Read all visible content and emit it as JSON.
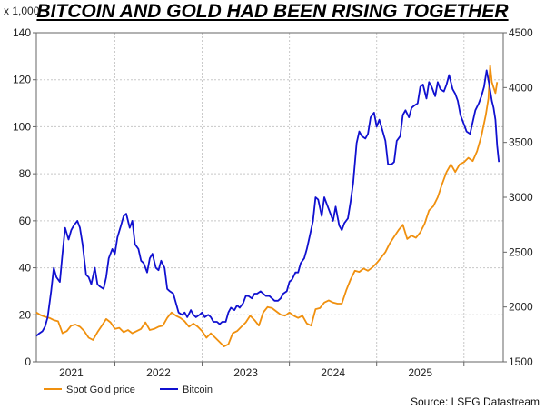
{
  "chart_data": {
    "type": "line",
    "title": "BITCOIN AND GOLD HAD BEEN RISING TOGETHER",
    "y_left_label": "x 1,000",
    "source": "Source: LSEG Datastream",
    "y_left": {
      "min": 0,
      "max": 140,
      "ticks": [
        "0",
        "20",
        "40",
        "60",
        "80",
        "100",
        "120",
        "140"
      ]
    },
    "y_right": {
      "min": 1500,
      "max": 4500,
      "ticks": [
        "1500",
        "2000",
        "2500",
        "3000",
        "3500",
        "4000",
        "4500"
      ]
    },
    "x_axis": {
      "min": 2020.6,
      "max": 2025.95,
      "year_labels": [
        "2021",
        "2022",
        "2023",
        "2024",
        "2025"
      ],
      "year_label_positions": [
        2021.0,
        2022.0,
        2023.0,
        2024.0,
        2025.0
      ],
      "gridlines": [
        2020.5,
        2021.5,
        2022.5,
        2023.5,
        2024.5,
        2025.5
      ]
    },
    "grid": true,
    "legend_position": "bottom-left",
    "series": [
      {
        "name": "Spot Gold price",
        "axis": "right",
        "color": "#f0900e",
        "points": [
          [
            2020.6,
            1950
          ],
          [
            2020.65,
            1925
          ],
          [
            2020.7,
            1910
          ],
          [
            2020.75,
            1900
          ],
          [
            2020.8,
            1880
          ],
          [
            2020.85,
            1870
          ],
          [
            2020.9,
            1760
          ],
          [
            2020.95,
            1780
          ],
          [
            2021.0,
            1830
          ],
          [
            2021.05,
            1840
          ],
          [
            2021.1,
            1820
          ],
          [
            2021.15,
            1780
          ],
          [
            2021.2,
            1720
          ],
          [
            2021.25,
            1700
          ],
          [
            2021.3,
            1770
          ],
          [
            2021.35,
            1830
          ],
          [
            2021.4,
            1890
          ],
          [
            2021.45,
            1860
          ],
          [
            2021.5,
            1800
          ],
          [
            2021.55,
            1810
          ],
          [
            2021.6,
            1770
          ],
          [
            2021.65,
            1790
          ],
          [
            2021.7,
            1760
          ],
          [
            2021.75,
            1780
          ],
          [
            2021.8,
            1800
          ],
          [
            2021.85,
            1860
          ],
          [
            2021.9,
            1790
          ],
          [
            2021.95,
            1800
          ],
          [
            2022.0,
            1820
          ],
          [
            2022.05,
            1830
          ],
          [
            2022.1,
            1900
          ],
          [
            2022.15,
            1950
          ],
          [
            2022.2,
            1920
          ],
          [
            2022.25,
            1900
          ],
          [
            2022.3,
            1870
          ],
          [
            2022.35,
            1820
          ],
          [
            2022.4,
            1850
          ],
          [
            2022.45,
            1820
          ],
          [
            2022.5,
            1780
          ],
          [
            2022.55,
            1720
          ],
          [
            2022.6,
            1760
          ],
          [
            2022.65,
            1720
          ],
          [
            2022.7,
            1680
          ],
          [
            2022.75,
            1640
          ],
          [
            2022.8,
            1660
          ],
          [
            2022.85,
            1760
          ],
          [
            2022.9,
            1780
          ],
          [
            2022.95,
            1820
          ],
          [
            2023.0,
            1860
          ],
          [
            2023.05,
            1920
          ],
          [
            2023.1,
            1880
          ],
          [
            2023.15,
            1830
          ],
          [
            2023.2,
            1950
          ],
          [
            2023.25,
            2000
          ],
          [
            2023.3,
            1990
          ],
          [
            2023.35,
            1960
          ],
          [
            2023.4,
            1930
          ],
          [
            2023.45,
            1920
          ],
          [
            2023.5,
            1950
          ],
          [
            2023.55,
            1920
          ],
          [
            2023.6,
            1900
          ],
          [
            2023.65,
            1920
          ],
          [
            2023.7,
            1850
          ],
          [
            2023.75,
            1830
          ],
          [
            2023.8,
            1980
          ],
          [
            2023.85,
            1990
          ],
          [
            2023.9,
            2040
          ],
          [
            2023.95,
            2060
          ],
          [
            2024.0,
            2040
          ],
          [
            2024.05,
            2030
          ],
          [
            2024.1,
            2030
          ],
          [
            2024.15,
            2150
          ],
          [
            2024.2,
            2250
          ],
          [
            2024.25,
            2330
          ],
          [
            2024.3,
            2320
          ],
          [
            2024.35,
            2350
          ],
          [
            2024.4,
            2330
          ],
          [
            2024.45,
            2360
          ],
          [
            2024.5,
            2400
          ],
          [
            2024.55,
            2450
          ],
          [
            2024.6,
            2500
          ],
          [
            2024.65,
            2580
          ],
          [
            2024.7,
            2640
          ],
          [
            2024.75,
            2700
          ],
          [
            2024.8,
            2750
          ],
          [
            2024.85,
            2620
          ],
          [
            2024.9,
            2650
          ],
          [
            2024.95,
            2630
          ],
          [
            2025.0,
            2680
          ],
          [
            2025.05,
            2760
          ],
          [
            2025.1,
            2880
          ],
          [
            2025.15,
            2920
          ],
          [
            2025.2,
            3000
          ],
          [
            2025.25,
            3120
          ],
          [
            2025.3,
            3230
          ],
          [
            2025.35,
            3300
          ],
          [
            2025.4,
            3230
          ],
          [
            2025.45,
            3300
          ],
          [
            2025.5,
            3320
          ],
          [
            2025.55,
            3360
          ],
          [
            2025.6,
            3330
          ],
          [
            2025.65,
            3420
          ],
          [
            2025.7,
            3560
          ],
          [
            2025.75,
            3750
          ],
          [
            2025.78,
            3900
          ],
          [
            2025.8,
            4200
          ],
          [
            2025.82,
            4050
          ],
          [
            2025.84,
            4000
          ],
          [
            2025.86,
            3950
          ],
          [
            2025.88,
            4050
          ]
        ]
      },
      {
        "name": "Bitcoin",
        "axis": "left",
        "color": "#1010d0",
        "points": [
          [
            2020.6,
            11
          ],
          [
            2020.63,
            12
          ],
          [
            2020.67,
            13
          ],
          [
            2020.7,
            15
          ],
          [
            2020.73,
            19
          ],
          [
            2020.77,
            30
          ],
          [
            2020.8,
            40
          ],
          [
            2020.83,
            36
          ],
          [
            2020.87,
            34
          ],
          [
            2020.9,
            46
          ],
          [
            2020.93,
            57
          ],
          [
            2020.97,
            52
          ],
          [
            2021.0,
            56
          ],
          [
            2021.03,
            58
          ],
          [
            2021.07,
            60
          ],
          [
            2021.1,
            57
          ],
          [
            2021.13,
            50
          ],
          [
            2021.17,
            37
          ],
          [
            2021.2,
            36
          ],
          [
            2021.23,
            33
          ],
          [
            2021.27,
            40
          ],
          [
            2021.3,
            33
          ],
          [
            2021.33,
            32
          ],
          [
            2021.37,
            31
          ],
          [
            2021.4,
            36
          ],
          [
            2021.43,
            44
          ],
          [
            2021.47,
            48
          ],
          [
            2021.5,
            46
          ],
          [
            2021.53,
            53
          ],
          [
            2021.57,
            58
          ],
          [
            2021.6,
            62
          ],
          [
            2021.63,
            63
          ],
          [
            2021.67,
            57
          ],
          [
            2021.7,
            60
          ],
          [
            2021.73,
            50
          ],
          [
            2021.77,
            48
          ],
          [
            2021.8,
            43
          ],
          [
            2021.83,
            42
          ],
          [
            2021.87,
            38
          ],
          [
            2021.9,
            44
          ],
          [
            2021.93,
            46
          ],
          [
            2021.97,
            40
          ],
          [
            2022.0,
            39
          ],
          [
            2022.03,
            43
          ],
          [
            2022.07,
            40
          ],
          [
            2022.1,
            31
          ],
          [
            2022.13,
            30
          ],
          [
            2022.17,
            29
          ],
          [
            2022.2,
            25
          ],
          [
            2022.23,
            21
          ],
          [
            2022.27,
            20
          ],
          [
            2022.3,
            21
          ],
          [
            2022.33,
            19
          ],
          [
            2022.37,
            22
          ],
          [
            2022.4,
            20
          ],
          [
            2022.43,
            19
          ],
          [
            2022.47,
            20
          ],
          [
            2022.5,
            21
          ],
          [
            2022.53,
            19
          ],
          [
            2022.57,
            20
          ],
          [
            2022.6,
            19
          ],
          [
            2022.63,
            17
          ],
          [
            2022.67,
            17
          ],
          [
            2022.7,
            16
          ],
          [
            2022.73,
            17
          ],
          [
            2022.77,
            17
          ],
          [
            2022.8,
            21
          ],
          [
            2022.83,
            23
          ],
          [
            2022.87,
            22
          ],
          [
            2022.9,
            24
          ],
          [
            2022.93,
            23
          ],
          [
            2022.97,
            25
          ],
          [
            2023.0,
            28
          ],
          [
            2023.03,
            28
          ],
          [
            2023.07,
            27
          ],
          [
            2023.1,
            29
          ],
          [
            2023.13,
            29
          ],
          [
            2023.17,
            30
          ],
          [
            2023.2,
            29
          ],
          [
            2023.23,
            28
          ],
          [
            2023.27,
            28
          ],
          [
            2023.3,
            27
          ],
          [
            2023.33,
            26
          ],
          [
            2023.37,
            26
          ],
          [
            2023.4,
            27
          ],
          [
            2023.43,
            29
          ],
          [
            2023.47,
            30
          ],
          [
            2023.5,
            34
          ],
          [
            2023.53,
            35
          ],
          [
            2023.57,
            38
          ],
          [
            2023.6,
            38
          ],
          [
            2023.63,
            42
          ],
          [
            2023.67,
            44
          ],
          [
            2023.7,
            48
          ],
          [
            2023.73,
            53
          ],
          [
            2023.77,
            60
          ],
          [
            2023.8,
            70
          ],
          [
            2023.83,
            69
          ],
          [
            2023.87,
            62
          ],
          [
            2023.9,
            70
          ],
          [
            2023.93,
            67
          ],
          [
            2023.97,
            63
          ],
          [
            2024.0,
            60
          ],
          [
            2024.03,
            66
          ],
          [
            2024.07,
            58
          ],
          [
            2024.1,
            56
          ],
          [
            2024.13,
            59
          ],
          [
            2024.17,
            61
          ],
          [
            2024.2,
            68
          ],
          [
            2024.23,
            76
          ],
          [
            2024.27,
            93
          ],
          [
            2024.3,
            98
          ],
          [
            2024.33,
            96
          ],
          [
            2024.37,
            95
          ],
          [
            2024.4,
            97
          ],
          [
            2024.43,
            104
          ],
          [
            2024.47,
            106
          ],
          [
            2024.5,
            100
          ],
          [
            2024.53,
            103
          ],
          [
            2024.57,
            98
          ],
          [
            2024.6,
            94
          ],
          [
            2024.63,
            84
          ],
          [
            2024.67,
            84
          ],
          [
            2024.7,
            85
          ],
          [
            2024.73,
            94
          ],
          [
            2024.77,
            96
          ],
          [
            2024.8,
            105
          ],
          [
            2024.83,
            107
          ],
          [
            2024.87,
            104
          ],
          [
            2024.9,
            108
          ],
          [
            2024.93,
            109
          ],
          [
            2024.97,
            110
          ],
          [
            2025.0,
            117
          ],
          [
            2025.03,
            118
          ],
          [
            2025.07,
            112
          ],
          [
            2025.1,
            119
          ],
          [
            2025.13,
            117
          ],
          [
            2025.17,
            113
          ],
          [
            2025.2,
            119
          ],
          [
            2025.23,
            116
          ],
          [
            2025.27,
            115
          ],
          [
            2025.3,
            118
          ],
          [
            2025.33,
            122
          ],
          [
            2025.37,
            116
          ],
          [
            2025.4,
            114
          ],
          [
            2025.43,
            111
          ],
          [
            2025.46,
            105
          ],
          [
            2025.5,
            101
          ],
          [
            2025.53,
            98
          ],
          [
            2025.57,
            97
          ],
          [
            2025.6,
            102
          ],
          [
            2025.63,
            107
          ],
          [
            2025.67,
            110
          ],
          [
            2025.7,
            113
          ],
          [
            2025.73,
            117
          ],
          [
            2025.76,
            124
          ],
          [
            2025.79,
            118
          ],
          [
            2025.82,
            111
          ],
          [
            2025.84,
            108
          ],
          [
            2025.86,
            103
          ],
          [
            2025.88,
            92
          ],
          [
            2025.9,
            85
          ]
        ]
      }
    ]
  }
}
